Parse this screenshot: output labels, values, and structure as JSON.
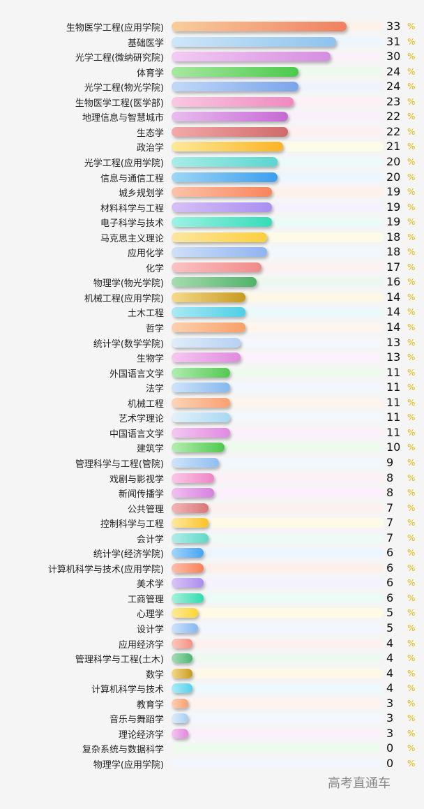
{
  "chart_data": {
    "type": "bar",
    "orientation": "horizontal",
    "value_suffix": "%",
    "categories": [
      "生物医学工程(应用学院)",
      "基础医学",
      "光学工程(微纳研究院)",
      "体育学",
      "光学工程(物光学院)",
      "生物医学工程(医学部)",
      "地理信息与智慧城市",
      "生态学",
      "政治学",
      "光学工程(应用学院)",
      "信息与通信工程",
      "城乡规划学",
      "材料科学与工程",
      "电子科学与技术",
      "马克思主义理论",
      "应用化学",
      "化学",
      "物理学(物光学院)",
      "机械工程(应用学院)",
      "土木工程",
      "哲学",
      "统计学(数学学院)",
      "生物学",
      "外国语言文学",
      "法学",
      "机械工程",
      "艺术学理论",
      "中国语言文学",
      "建筑学",
      "管理科学与工程(管院)",
      "戏剧与影视学",
      "新闻传播学",
      "公共管理",
      "控制科学与工程",
      "会计学",
      "统计学(经济学院)",
      "计算机科学与技术(应用学院)",
      "美术学",
      "工商管理",
      "心理学",
      "设计学",
      "应用经济学",
      "管理科学与工程(土木)",
      "数学",
      "计算机科学与技术",
      "教育学",
      "音乐与舞蹈学",
      "理论经济学",
      "复杂系统与数据科学",
      "物理学(应用学院)"
    ],
    "values": [
      33,
      31,
      30,
      24,
      24,
      23,
      22,
      22,
      21,
      20,
      20,
      19,
      19,
      19,
      18,
      18,
      17,
      16,
      14,
      14,
      14,
      13,
      13,
      11,
      11,
      11,
      11,
      11,
      10,
      9,
      8,
      8,
      7,
      7,
      7,
      6,
      6,
      6,
      6,
      5,
      5,
      4,
      4,
      4,
      4,
      3,
      3,
      3,
      0,
      0
    ],
    "colors": [
      [
        "#f8cd9c",
        "#f08060"
      ],
      [
        "#cfe6f8",
        "#8ec3ec"
      ],
      [
        "#f3cbf3",
        "#d58ee0"
      ],
      [
        "#a8e8a0",
        "#4bc94b"
      ],
      [
        "#c2d8f6",
        "#7ba4ea"
      ],
      [
        "#f9c8e2",
        "#f08ac0"
      ],
      [
        "#e8bdee",
        "#c56ad4"
      ],
      [
        "#f2a9a9",
        "#d06a6a"
      ],
      [
        "#fde99a",
        "#fbb424"
      ],
      [
        "#a9ece8",
        "#5bd6d0"
      ],
      [
        "#9ed6f5",
        "#3c9eee"
      ],
      [
        "#fcc3a8",
        "#f8855c"
      ],
      [
        "#d6c0f6",
        "#a98ef0"
      ],
      [
        "#9ef2e4",
        "#34dcb8"
      ],
      [
        "#fde6a2",
        "#fbcf3c"
      ],
      [
        "#cfe0f8",
        "#8eb4f0"
      ],
      [
        "#fbc3c3",
        "#f08a8a"
      ],
      [
        "#a6dbb0",
        "#50b36a"
      ],
      [
        "#f6da8c",
        "#c89a1e"
      ],
      [
        "#abe9f4",
        "#4dcfe6"
      ],
      [
        "#fdd0b0",
        "#f7a066"
      ],
      [
        "#e0ecf8",
        "#b6d2f2"
      ],
      [
        "#f6c8f0",
        "#e08ae0"
      ],
      [
        "#b0ecb0",
        "#52c952"
      ],
      [
        "#cfe4fa",
        "#86b8ee"
      ],
      [
        "#fcd4b8",
        "#f9a070"
      ],
      [
        "#e3f1fb",
        "#a9d8f2"
      ],
      [
        "#f3c8f0",
        "#e08ae0"
      ],
      [
        "#b6ecb0",
        "#4ec94e"
      ],
      [
        "#cfe4fa",
        "#90bef0"
      ],
      [
        "#f9c8e6",
        "#f084c8"
      ],
      [
        "#f0c0f0",
        "#d880e0"
      ],
      [
        "#f3b6b6",
        "#d87676"
      ],
      [
        "#fde9a0",
        "#fbc324"
      ],
      [
        "#b2ede6",
        "#60d8c8"
      ],
      [
        "#a4d6fa",
        "#44a4f2"
      ],
      [
        "#fcc0aa",
        "#f8805a"
      ],
      [
        "#d8c4f6",
        "#a98ef0"
      ],
      [
        "#a8f0dc",
        "#30dcb0"
      ],
      [
        "#fdea9c",
        "#fbd730"
      ],
      [
        "#cfe2fa",
        "#88b8f0"
      ],
      [
        "#fbc8c0",
        "#f59080"
      ],
      [
        "#a8dcb8",
        "#48b870"
      ],
      [
        "#f4d88c",
        "#c99a1e"
      ],
      [
        "#aeeaf6",
        "#52d2ea"
      ],
      [
        "#fdd0b4",
        "#f9a072"
      ],
      [
        "#dcecfa",
        "#a6d0f4"
      ],
      [
        "#f6c6ee",
        "#e086e0"
      ],
      [
        "#bfeec0",
        "#66d066"
      ],
      [
        "#dfeffc",
        "#b2d6f4"
      ]
    ],
    "track_colors": [
      "#fdf2ea",
      "#eef5fb",
      "#fbf1fb",
      "#eef9ed",
      "#eef3fc",
      "#fdf0f6",
      "#faf0fb",
      "#fcf0f0",
      "#fefbe8",
      "#edfafa",
      "#ecf6fd",
      "#fdf1ec",
      "#f5f1fd",
      "#ebfcf8",
      "#fefae9",
      "#f2f6fd",
      "#fdf2f2",
      "#edf7f0",
      "#fdf7e6",
      "#ecf9fb",
      "#fdf5ee",
      "#f4f8fc",
      "#fcf2fb",
      "#eefaee",
      "#f2f7fd",
      "#fdf4ee",
      "#f2f8fc",
      "#fbf1fb",
      "#eefaee",
      "#f2f7fd",
      "#fdf1f8",
      "#fbf0fb",
      "#fcf1f1",
      "#fefae8",
      "#eefaf8",
      "#ecf5fd",
      "#fdf0ec",
      "#f5f1fd",
      "#ebfbf6",
      "#fefae6",
      "#f2f6fd",
      "#fdf1ef",
      "#edf8f1",
      "#fdf8e8",
      "#edf9fc",
      "#fdf4ef",
      "#f2f8fd",
      "#fbf1fb",
      "#eefaed",
      "#f2f7fd"
    ],
    "xlim": [
      0,
      40
    ]
  },
  "watermark": "高考直通车"
}
